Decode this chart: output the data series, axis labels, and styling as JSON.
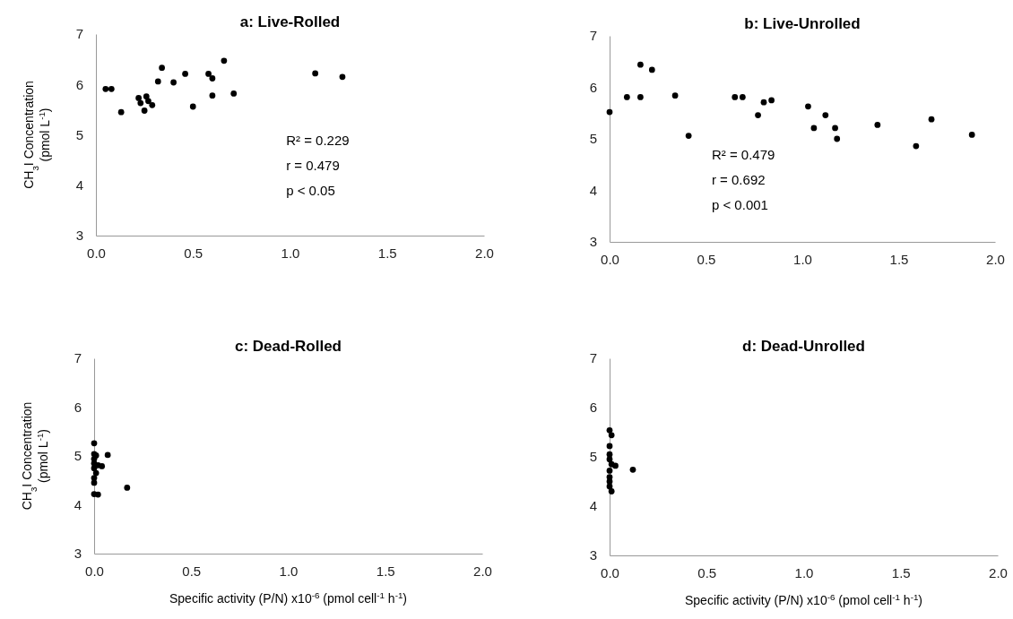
{
  "chart_data": [
    {
      "type": "scatter",
      "title": "a: Live-Rolled",
      "ylabel": "CH$_{3}$I Concentration (pmol L$^{-1}$)",
      "xlim": [
        0,
        2
      ],
      "xticks": [
        {
          "value": 0,
          "label": "0.0"
        },
        {
          "value": 0.5,
          "label": "0.5"
        },
        {
          "value": 1,
          "label": "1.0"
        },
        {
          "value": 1.5,
          "label": "1.5"
        },
        {
          "value": 2,
          "label": "2.0"
        }
      ],
      "ylim": [
        3,
        7
      ],
      "yticks": [
        3,
        4,
        5,
        6,
        7
      ],
      "marker": "circle",
      "annotations": [
        "R² = 0.229",
        "r = 0.479",
        "p < 0.05"
      ],
      "series": [
        {
          "color": "#000000",
          "x": [
            0.05,
            0.08,
            0.13,
            0.22,
            0.23,
            0.25,
            0.26,
            0.27,
            0.29,
            0.32,
            0.34,
            0.4,
            0.46,
            0.5,
            0.58,
            0.6,
            0.6,
            0.66,
            0.71,
            1.13,
            1.27
          ],
          "values": [
            5.91,
            5.91,
            5.45,
            5.73,
            5.63,
            5.48,
            5.76,
            5.67,
            5.59,
            6.06,
            6.33,
            6.04,
            6.21,
            5.56,
            6.21,
            6.12,
            5.78,
            6.47,
            5.82,
            6.22,
            6.15
          ]
        }
      ]
    },
    {
      "type": "scatter",
      "title": "b: Live-Unrolled",
      "xlim": [
        0,
        2
      ],
      "xticks": [
        {
          "value": 0,
          "label": "0.0"
        },
        {
          "value": 0.5,
          "label": "0.5"
        },
        {
          "value": 1,
          "label": "1.0"
        },
        {
          "value": 1.5,
          "label": "1.5"
        },
        {
          "value": 2,
          "label": "2.0"
        }
      ],
      "ylim": [
        3,
        7
      ],
      "yticks": [
        3,
        4,
        5,
        6,
        7
      ],
      "marker": "circle",
      "annotations": [
        "R² = 0.479",
        "r = 0.692",
        "p < 0.001"
      ],
      "series": [
        {
          "color": "#000000",
          "x": [
            0.0,
            0.09,
            0.16,
            0.16,
            0.22,
            0.34,
            0.41,
            0.65,
            0.69,
            0.77,
            0.8,
            0.84,
            1.03,
            1.06,
            1.12,
            1.17,
            1.18,
            1.39,
            1.59,
            1.67,
            1.88
          ],
          "values": [
            5.52,
            5.81,
            6.44,
            5.81,
            6.34,
            5.84,
            5.06,
            5.81,
            5.81,
            5.46,
            5.71,
            5.75,
            5.63,
            5.21,
            5.46,
            5.21,
            5.0,
            5.27,
            4.86,
            5.38,
            5.08
          ]
        }
      ]
    },
    {
      "type": "scatter",
      "title": "c: Dead-Rolled",
      "ylabel": "CH$_{3}$I Concentration (pmol L$^{-1}$)",
      "xlabel": "Specific activity (P/N) x10$^{-6}$ (pmol cell$^{-1}$ h$^{-1}$)",
      "xlim": [
        0,
        2
      ],
      "xticks": [
        {
          "value": 0,
          "label": "0.0"
        },
        {
          "value": 0.5,
          "label": "0.5"
        },
        {
          "value": 1,
          "label": "1.0"
        },
        {
          "value": 1.5,
          "label": "1.5"
        },
        {
          "value": 2,
          "label": "2.0"
        }
      ],
      "ylim": [
        3,
        7
      ],
      "yticks": [
        3,
        4,
        5,
        6,
        7
      ],
      "marker": "circle",
      "series": [
        {
          "color": "#000000",
          "x": [
            0.0,
            0.0,
            0.0,
            0.0,
            0.0,
            0.01,
            0.0,
            0.0,
            0.07,
            0.04,
            0.02,
            0.0,
            0.02,
            0.17,
            0.01
          ],
          "values": [
            5.26,
            5.04,
            4.94,
            4.85,
            4.75,
            4.65,
            4.55,
            4.45,
            5.02,
            4.79,
            4.81,
            4.22,
            4.21,
            4.35,
            5.01
          ]
        }
      ]
    },
    {
      "type": "scatter",
      "title": "d: Dead-Unrolled",
      "xlabel": "Specific activity (P/N) x10$^{-6}$ (pmol cell$^{-1}$ h$^{-1}$)",
      "xlim": [
        0,
        2
      ],
      "xticks": [
        {
          "value": 0,
          "label": "0.0"
        },
        {
          "value": 0.5,
          "label": "0.5"
        },
        {
          "value": 1,
          "label": "1.0"
        },
        {
          "value": 1.5,
          "label": "1.5"
        },
        {
          "value": 2,
          "label": "2.0"
        }
      ],
      "ylim": [
        3,
        7
      ],
      "yticks": [
        3,
        4,
        5,
        6,
        7
      ],
      "marker": "circle",
      "series": [
        {
          "color": "#000000",
          "x": [
            0.0,
            0.01,
            0.0,
            0.0,
            0.0,
            0.01,
            0.03,
            0.0,
            0.0,
            0.0,
            0.0,
            0.01,
            0.12
          ],
          "values": [
            5.54,
            5.44,
            5.22,
            5.05,
            4.95,
            4.85,
            4.82,
            4.72,
            4.59,
            4.5,
            4.4,
            4.3,
            4.74
          ]
        }
      ]
    }
  ]
}
